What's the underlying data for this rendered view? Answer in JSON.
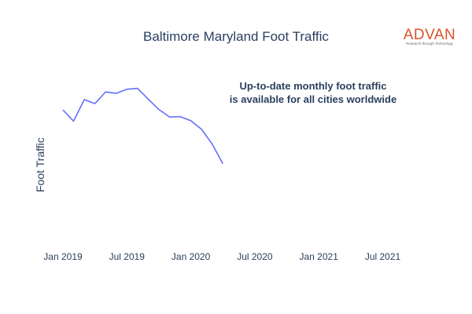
{
  "chart_data": {
    "type": "line",
    "title": "Baltimore Maryland Foot Traffic",
    "ylabel": "Foot Traffic",
    "xlabel": "",
    "x_ticks": [
      "Jan 2019",
      "Jul 2019",
      "Jan 2020",
      "Jul 2020",
      "Jan 2021",
      "Jul 2021"
    ],
    "y_tick_labels_shown": false,
    "grid": false,
    "series": [
      {
        "color": "#636efa",
        "points": [
          {
            "x": "2019-01",
            "y": 58.0
          },
          {
            "x": "2019-02",
            "y": 55.5
          },
          {
            "x": "2019-03",
            "y": 60.3
          },
          {
            "x": "2019-04",
            "y": 59.4
          },
          {
            "x": "2019-05",
            "y": 62.0
          },
          {
            "x": "2019-06",
            "y": 61.7
          },
          {
            "x": "2019-07",
            "y": 62.6
          },
          {
            "x": "2019-08",
            "y": 62.8
          },
          {
            "x": "2019-09",
            "y": 60.4
          },
          {
            "x": "2019-10",
            "y": 58.1
          },
          {
            "x": "2019-11",
            "y": 56.4
          },
          {
            "x": "2019-12",
            "y": 56.5
          },
          {
            "x": "2020-01",
            "y": 55.6
          },
          {
            "x": "2020-02",
            "y": 53.7
          },
          {
            "x": "2020-03",
            "y": 50.4
          },
          {
            "x": "2020-04",
            "y": 46.0
          }
        ]
      }
    ],
    "annotation": [
      "Up-to-date monthly foot traffic",
      "is available for all cities worldwide"
    ]
  },
  "logo": {
    "name": "ADVAN",
    "tagline": "Research through Technology",
    "color": "#d9542a"
  }
}
